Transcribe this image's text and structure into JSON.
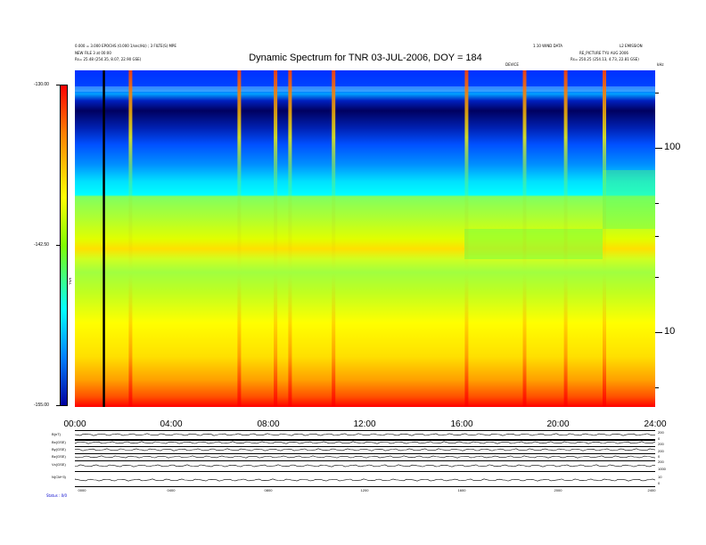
{
  "header": {
    "left_line1": "0.000 = 3.000 EPOCHS (0.000 1/sec/Hz) ; 3 FILTE(S) MPE",
    "left_line2": "NEW FILE 3 at 00:00",
    "left_line3": "Rs= 25.48 (254.35, 8.07, 22.90 GSE)",
    "right_line1": "1.10 WIND DATA",
    "right_line1b": "L2 EMISSION",
    "right_line2": "RE_PICTURE TYU AUG 2006",
    "right_line3": "Rs= 250.25 (254.13, 4.73, 22.81 GSE)",
    "right_line4": "DEVICE",
    "right_corner": "kHz"
  },
  "chart_data": {
    "type": "heatmap",
    "title": "Dynamic Spectrum for TNR 03-JUL-2006, DOY = 184",
    "x_ticks": [
      "00:00",
      "04:00",
      "08:00",
      "12:00",
      "16:00",
      "20:00",
      "24:00"
    ],
    "x_range_hours": [
      0,
      24
    ],
    "y_ticks": [
      "100",
      "10"
    ],
    "y_scale": "log",
    "colorbar": {
      "ticks": [
        "-130.00",
        "-142.50",
        "-155.00"
      ],
      "range": [
        -155,
        -130
      ],
      "units": "TNR"
    },
    "bursts_hours": [
      2.3,
      6.8,
      8.3,
      8.9,
      10.7,
      16.2,
      18.6,
      20.3,
      21.9
    ],
    "marker_hour": 1.2,
    "lower_panels": {
      "left_labels": [
        "B(nT)",
        "Bx(GSE)",
        "By(GSE)",
        "Bz(GSE)",
        "Vx(GSE)",
        "N(CM^3)"
      ],
      "right_labels": [
        "200",
        "0",
        "200",
        "200",
        "0",
        "200",
        "1000",
        "10",
        "0"
      ],
      "x_ticks": [
        "0000",
        "0400",
        "0800",
        "1200",
        "1600",
        "2000",
        "2400"
      ]
    },
    "footer": "Status : 0/0"
  }
}
